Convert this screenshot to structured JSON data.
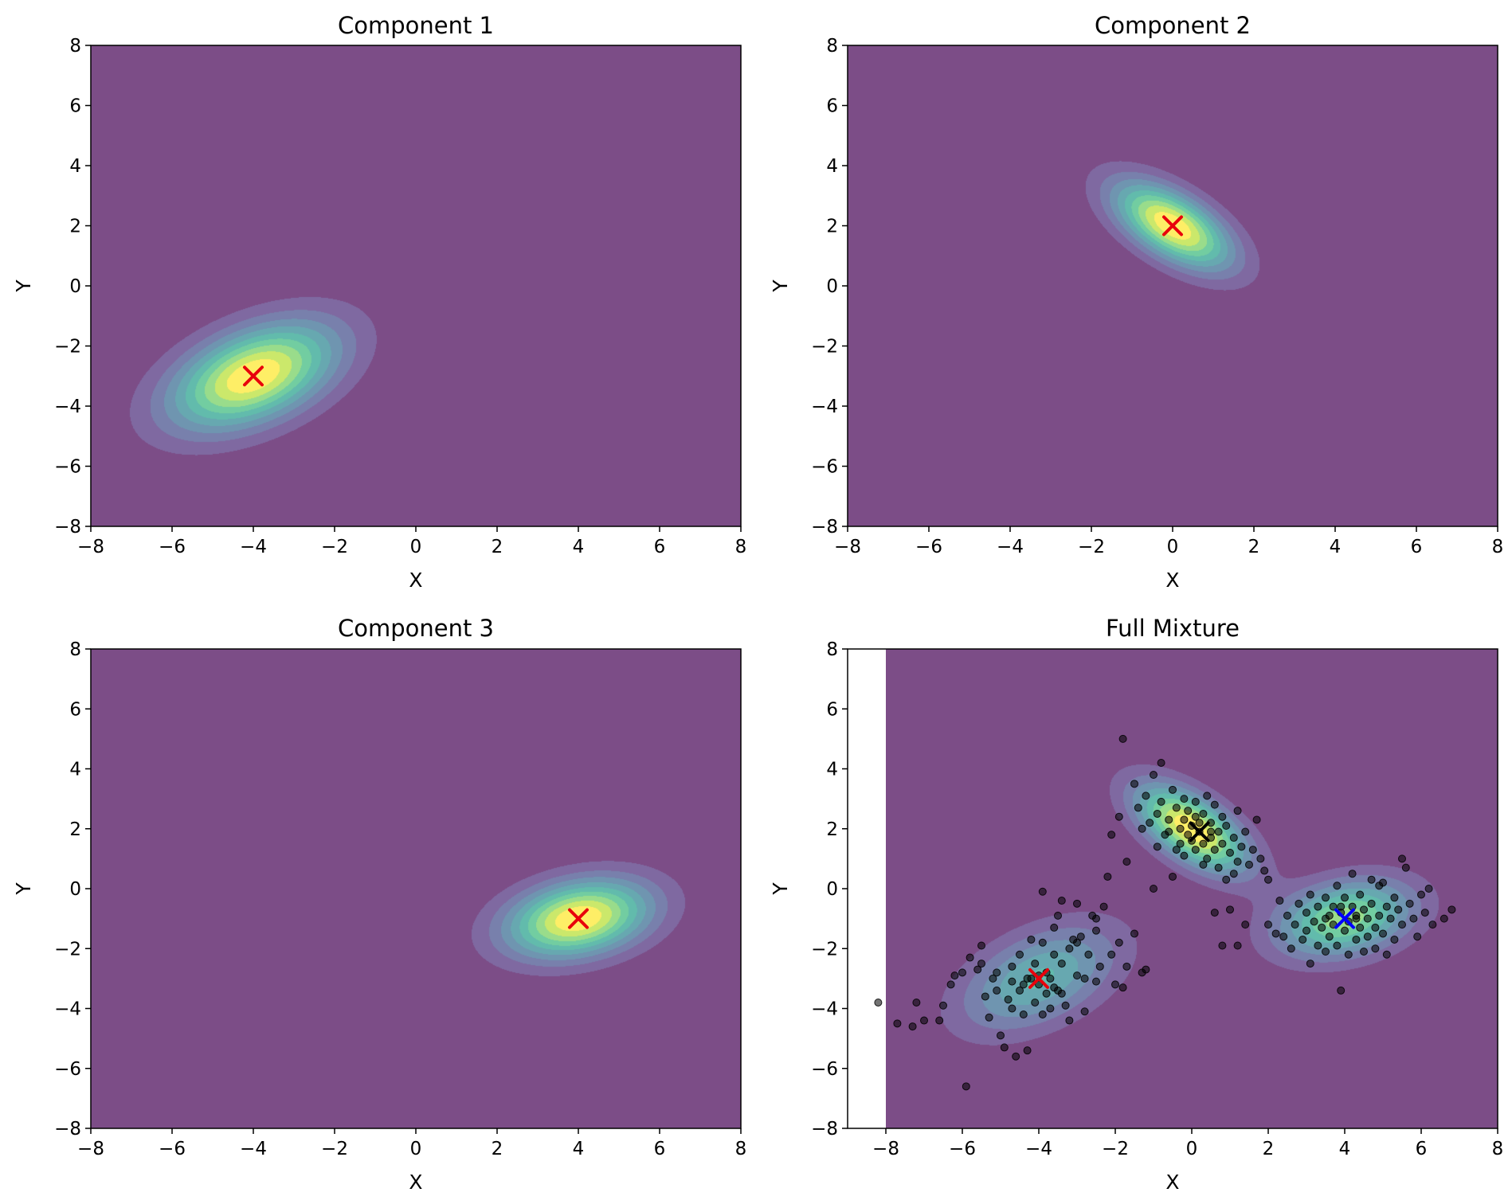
{
  "chart_data": [
    {
      "type": "contour",
      "title": "Component 1",
      "xlabel": "X",
      "ylabel": "Y",
      "xlim": [
        -8,
        8
      ],
      "ylim": [
        -8,
        8
      ],
      "xticks": [
        "−8",
        "−6",
        "−4",
        "−2",
        "0",
        "2",
        "4",
        "6",
        "8"
      ],
      "yticks": [
        "−8",
        "−6",
        "−4",
        "−2",
        "0",
        "2",
        "4",
        "6",
        "8"
      ],
      "grid": false,
      "legend": "none",
      "colormap": "viridis",
      "gaussians": [
        {
          "mean": [
            -4,
            -3
          ],
          "cov": [
            [
              2.0,
              0.8
            ],
            [
              0.8,
              1.5
            ]
          ],
          "weight": 1
        }
      ],
      "means": [
        {
          "x": -4,
          "y": -3,
          "marker": "x",
          "color": "#e8000b"
        }
      ]
    },
    {
      "type": "contour",
      "title": "Component 2",
      "xlabel": "X",
      "ylabel": "Y",
      "xlim": [
        -8,
        8
      ],
      "ylim": [
        -8,
        8
      ],
      "xticks": [
        "−8",
        "−6",
        "−4",
        "−2",
        "0",
        "2",
        "4",
        "6",
        "8"
      ],
      "yticks": [
        "−8",
        "−6",
        "−4",
        "−2",
        "0",
        "2",
        "4",
        "6",
        "8"
      ],
      "grid": false,
      "legend": "none",
      "colormap": "viridis",
      "gaussians": [
        {
          "mean": [
            0,
            2
          ],
          "cov": [
            [
              1.0,
              -0.6
            ],
            [
              -0.6,
              1.0
            ]
          ],
          "weight": 1
        }
      ],
      "means": [
        {
          "x": 0,
          "y": 2,
          "marker": "x",
          "color": "#e8000b"
        }
      ]
    },
    {
      "type": "contour",
      "title": "Component 3",
      "xlabel": "X",
      "ylabel": "Y",
      "xlim": [
        -8,
        8
      ],
      "ylim": [
        -8,
        8
      ],
      "xticks": [
        "−8",
        "−6",
        "−4",
        "−2",
        "0",
        "2",
        "4",
        "6",
        "8"
      ],
      "yticks": [
        "−8",
        "−6",
        "−4",
        "−2",
        "0",
        "2",
        "4",
        "6",
        "8"
      ],
      "grid": false,
      "legend": "none",
      "colormap": "viridis",
      "gaussians": [
        {
          "mean": [
            4,
            -1
          ],
          "cov": [
            [
              1.5,
              0.3
            ],
            [
              0.3,
              0.8
            ]
          ],
          "weight": 1
        }
      ],
      "means": [
        {
          "x": 4,
          "y": -1,
          "marker": "x",
          "color": "#e8000b"
        }
      ]
    },
    {
      "type": "contour+scatter",
      "title": "Full Mixture",
      "xlabel": "X",
      "ylabel": "Y",
      "xlim": [
        -9,
        8
      ],
      "ylim": [
        -8,
        8
      ],
      "contour_xlim": [
        -8,
        8
      ],
      "xticks": [
        "−8",
        "−6",
        "−4",
        "−2",
        "0",
        "2",
        "4",
        "6",
        "8"
      ],
      "yticks": [
        "−8",
        "−6",
        "−4",
        "−2",
        "0",
        "2",
        "4",
        "6",
        "8"
      ],
      "grid": false,
      "legend": "none",
      "colormap": "viridis",
      "gaussians": [
        {
          "mean": [
            -4,
            -3
          ],
          "cov": [
            [
              2.0,
              0.8
            ],
            [
              0.8,
              1.5
            ]
          ],
          "weight": 0.333
        },
        {
          "mean": [
            0,
            2
          ],
          "cov": [
            [
              1.0,
              -0.6
            ],
            [
              -0.6,
              1.0
            ]
          ],
          "weight": 0.333
        },
        {
          "mean": [
            4,
            -1
          ],
          "cov": [
            [
              1.5,
              0.3
            ],
            [
              0.3,
              0.8
            ]
          ],
          "weight": 0.333
        }
      ],
      "means": [
        {
          "x": -4,
          "y": -3,
          "marker": "x",
          "color": "#e8000b"
        },
        {
          "x": 0.2,
          "y": 1.9,
          "marker": "x",
          "color": "#000000"
        },
        {
          "x": 4,
          "y": -1,
          "marker": "x",
          "color": "#0000ff"
        }
      ],
      "points": [
        [
          -8.2,
          -3.8
        ],
        [
          -7.7,
          -4.5
        ],
        [
          -7.3,
          -4.6
        ],
        [
          -7.2,
          -3.8
        ],
        [
          -7.0,
          -4.4
        ],
        [
          -6.6,
          -4.4
        ],
        [
          -6.5,
          -3.9
        ],
        [
          -6.3,
          -3.2
        ],
        [
          -6.2,
          -2.9
        ],
        [
          -6.0,
          -2.8
        ],
        [
          -5.9,
          -6.6
        ],
        [
          -5.8,
          -2.3
        ],
        [
          -5.6,
          -2.7
        ],
        [
          -5.5,
          -2.5
        ],
        [
          -5.5,
          -1.9
        ],
        [
          -5.4,
          -3.6
        ],
        [
          -5.3,
          -4.3
        ],
        [
          -5.2,
          -3.0
        ],
        [
          -5.1,
          -2.8
        ],
        [
          -5.0,
          -4.9
        ],
        [
          -4.9,
          -5.3
        ],
        [
          -4.8,
          -3.7
        ],
        [
          -4.7,
          -3.1
        ],
        [
          -4.7,
          -2.6
        ],
        [
          -4.6,
          -5.6
        ],
        [
          -4.5,
          -3.4
        ],
        [
          -4.5,
          -2.2
        ],
        [
          -4.4,
          -4.2
        ],
        [
          -4.3,
          -5.4
        ],
        [
          -4.3,
          -3.0
        ],
        [
          -4.2,
          -1.7
        ],
        [
          -4.1,
          -3.8
        ],
        [
          -4.1,
          -2.5
        ],
        [
          -4.0,
          -3.2
        ],
        [
          -3.9,
          -4.2
        ],
        [
          -3.9,
          -1.8
        ],
        [
          -3.8,
          -3.5
        ],
        [
          -3.8,
          -2.8
        ],
        [
          -3.7,
          -4.0
        ],
        [
          -3.7,
          -3.0
        ],
        [
          -3.6,
          -1.3
        ],
        [
          -3.6,
          -2.2
        ],
        [
          -3.5,
          -0.9
        ],
        [
          -3.5,
          -3.4
        ],
        [
          -3.4,
          -2.5
        ],
        [
          -3.4,
          -0.4
        ],
        [
          -3.3,
          -3.9
        ],
        [
          -3.2,
          -2.0
        ],
        [
          -3.2,
          -4.4
        ],
        [
          -3.1,
          -1.7
        ],
        [
          -3.0,
          -2.9
        ],
        [
          -3.0,
          -0.5
        ],
        [
          -2.9,
          -1.6
        ],
        [
          -2.8,
          -3.0
        ],
        [
          -2.8,
          -4.1
        ],
        [
          -2.7,
          -2.2
        ],
        [
          -2.6,
          -0.9
        ],
        [
          -2.5,
          -3.1
        ],
        [
          -2.5,
          -1.4
        ],
        [
          -2.4,
          -2.6
        ],
        [
          -2.3,
          -0.6
        ],
        [
          -2.2,
          0.4
        ],
        [
          -2.1,
          -2.2
        ],
        [
          -2.0,
          -3.2
        ],
        [
          -1.9,
          -1.8
        ],
        [
          -1.8,
          -3.3
        ],
        [
          -1.7,
          -2.6
        ],
        [
          -1.5,
          -1.5
        ],
        [
          -1.3,
          -2.8
        ],
        [
          -1.2,
          -2.7
        ],
        [
          -3.9,
          -0.1
        ],
        [
          -3.0,
          -1.8
        ],
        [
          -2.5,
          -1.0
        ],
        [
          -4.4,
          -3.2
        ],
        [
          -3.4,
          -3.5
        ],
        [
          -4.7,
          -4.0
        ],
        [
          -5.1,
          -3.4
        ],
        [
          -4.0,
          -2.9
        ],
        [
          -3.6,
          -3.3
        ],
        [
          -4.2,
          -3.0
        ],
        [
          -2.1,
          1.8
        ],
        [
          -1.9,
          2.4
        ],
        [
          -1.8,
          5.0
        ],
        [
          -1.7,
          0.9
        ],
        [
          -1.5,
          3.5
        ],
        [
          -1.4,
          2.7
        ],
        [
          -1.3,
          2.0
        ],
        [
          -1.2,
          3.1
        ],
        [
          -1.1,
          2.2
        ],
        [
          -1.0,
          3.8
        ],
        [
          -0.9,
          2.5
        ],
        [
          -0.9,
          1.4
        ],
        [
          -0.8,
          4.2
        ],
        [
          -0.8,
          2.9
        ],
        [
          -0.7,
          1.8
        ],
        [
          -0.6,
          2.3
        ],
        [
          -0.5,
          3.3
        ],
        [
          -0.5,
          0.4
        ],
        [
          -0.4,
          1.3
        ],
        [
          -0.4,
          2.7
        ],
        [
          -0.3,
          2.0
        ],
        [
          -0.3,
          1.5
        ],
        [
          -0.2,
          3.0
        ],
        [
          -0.2,
          2.3
        ],
        [
          -0.1,
          1.8
        ],
        [
          -0.1,
          2.6
        ],
        [
          0.0,
          2.1
        ],
        [
          0.0,
          1.6
        ],
        [
          0.1,
          2.9
        ],
        [
          0.1,
          1.3
        ],
        [
          0.2,
          2.2
        ],
        [
          0.2,
          1.9
        ],
        [
          0.3,
          1.5
        ],
        [
          0.3,
          2.5
        ],
        [
          0.4,
          1.0
        ],
        [
          0.4,
          3.1
        ],
        [
          0.5,
          1.7
        ],
        [
          0.5,
          2.2
        ],
        [
          0.6,
          1.3
        ],
        [
          0.6,
          2.8
        ],
        [
          0.7,
          1.9
        ],
        [
          0.7,
          0.7
        ],
        [
          0.8,
          2.4
        ],
        [
          0.8,
          1.5
        ],
        [
          0.9,
          0.3
        ],
        [
          0.9,
          2.1
        ],
        [
          1.0,
          1.2
        ],
        [
          1.0,
          -0.7
        ],
        [
          1.1,
          1.7
        ],
        [
          1.1,
          0.5
        ],
        [
          1.2,
          2.6
        ],
        [
          1.2,
          0.9
        ],
        [
          1.3,
          1.4
        ],
        [
          1.4,
          1.9
        ],
        [
          1.5,
          0.8
        ],
        [
          1.6,
          1.3
        ],
        [
          1.7,
          2.3
        ],
        [
          1.8,
          1.0
        ],
        [
          1.9,
          0.6
        ],
        [
          2.0,
          0.3
        ],
        [
          0.6,
          -0.8
        ],
        [
          0.8,
          -1.9
        ],
        [
          1.2,
          -1.9
        ],
        [
          1.4,
          -1.2
        ],
        [
          -1.0,
          0.0
        ],
        [
          -0.2,
          1.1
        ],
        [
          0.3,
          0.8
        ],
        [
          0.1,
          2.4
        ],
        [
          -0.6,
          1.9
        ],
        [
          0.5,
          1.9
        ],
        [
          2.0,
          -1.2
        ],
        [
          2.2,
          -1.5
        ],
        [
          2.3,
          -0.4
        ],
        [
          2.4,
          -1.6
        ],
        [
          2.5,
          -0.9
        ],
        [
          2.6,
          -2.0
        ],
        [
          2.7,
          -1.2
        ],
        [
          2.8,
          -0.5
        ],
        [
          2.9,
          -1.7
        ],
        [
          3.0,
          -0.8
        ],
        [
          3.0,
          -1.4
        ],
        [
          3.1,
          -2.5
        ],
        [
          3.1,
          -0.2
        ],
        [
          3.2,
          -1.1
        ],
        [
          3.3,
          -1.9
        ],
        [
          3.3,
          -0.6
        ],
        [
          3.4,
          -1.3
        ],
        [
          3.5,
          -0.3
        ],
        [
          3.5,
          -2.1
        ],
        [
          3.6,
          -0.9
        ],
        [
          3.6,
          -1.6
        ],
        [
          3.7,
          -0.6
        ],
        [
          3.7,
          -1.2
        ],
        [
          3.8,
          0.1
        ],
        [
          3.8,
          -1.9
        ],
        [
          3.9,
          -3.4
        ],
        [
          3.9,
          -0.8
        ],
        [
          4.0,
          -1.4
        ],
        [
          4.0,
          -0.3
        ],
        [
          4.1,
          -1.1
        ],
        [
          4.1,
          -2.2
        ],
        [
          4.2,
          -0.6
        ],
        [
          4.2,
          0.5
        ],
        [
          4.3,
          -1.7
        ],
        [
          4.3,
          -0.9
        ],
        [
          4.4,
          -1.3
        ],
        [
          4.4,
          -0.2
        ],
        [
          4.5,
          -2.1
        ],
        [
          4.5,
          -0.7
        ],
        [
          4.6,
          -1.0
        ],
        [
          4.6,
          -1.6
        ],
        [
          4.7,
          0.3
        ],
        [
          4.7,
          -0.5
        ],
        [
          4.8,
          -1.3
        ],
        [
          4.8,
          -2.0
        ],
        [
          4.9,
          -0.9
        ],
        [
          5.0,
          0.2
        ],
        [
          5.0,
          -1.5
        ],
        [
          5.1,
          -0.6
        ],
        [
          5.1,
          -2.2
        ],
        [
          5.2,
          -1.0
        ],
        [
          5.3,
          -0.3
        ],
        [
          5.3,
          -1.7
        ],
        [
          5.4,
          -0.7
        ],
        [
          5.5,
          -1.2
        ],
        [
          5.6,
          0.7
        ],
        [
          5.7,
          -0.5
        ],
        [
          5.8,
          -1.0
        ],
        [
          5.9,
          -1.6
        ],
        [
          6.0,
          -0.2
        ],
        [
          6.1,
          -0.8
        ],
        [
          6.2,
          0.0
        ],
        [
          6.3,
          -1.2
        ],
        [
          6.6,
          -1.0
        ],
        [
          6.8,
          -0.7
        ],
        [
          5.5,
          1.0
        ],
        [
          4.9,
          0.1
        ],
        [
          3.9,
          -0.6
        ],
        [
          4.3,
          -1.0
        ],
        [
          3.5,
          -1.0
        ]
      ]
    }
  ]
}
